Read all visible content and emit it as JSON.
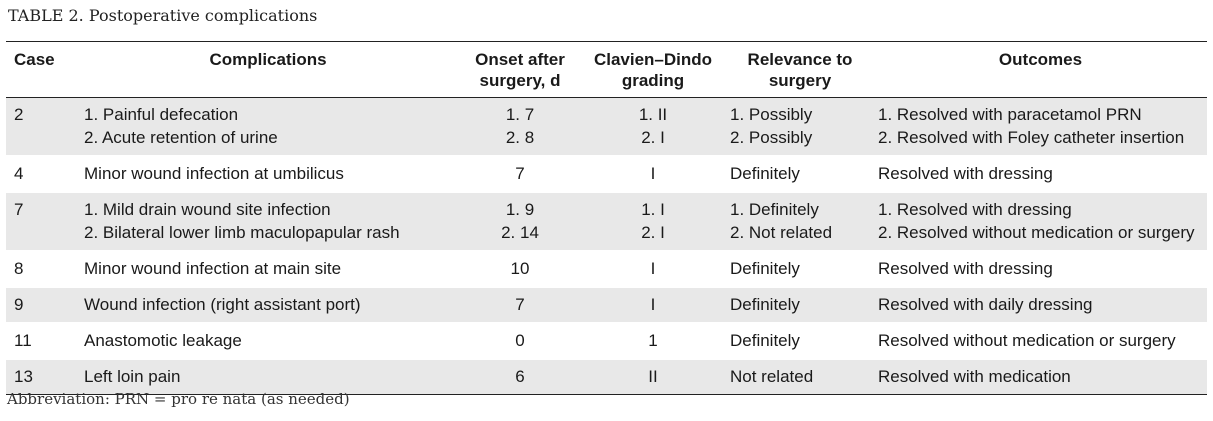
{
  "caption": {
    "label": "TABLE 2.",
    "title": "Postoperative complications"
  },
  "table": {
    "headers": [
      [
        "Case"
      ],
      [
        "Complications"
      ],
      [
        "Onset after",
        "surgery, d"
      ],
      [
        "Clavien–Dindo",
        "grading"
      ],
      [
        "Relevance to",
        "surgery"
      ],
      [
        "Outcomes"
      ]
    ],
    "rows": [
      {
        "case": "2",
        "complications": [
          "1. Painful defecation",
          "2. Acute retention of urine"
        ],
        "onset": [
          "1. 7",
          "2. 8"
        ],
        "grading": [
          "1. II",
          "2. I"
        ],
        "relevance": [
          "1. Possibly",
          "2. Possibly"
        ],
        "outcomes": [
          "1. Resolved with paracetamol PRN",
          "2. Resolved with Foley catheter insertion"
        ]
      },
      {
        "case": "4",
        "complications": [
          "Minor wound infection at umbilicus"
        ],
        "onset": [
          "7"
        ],
        "grading": [
          "I"
        ],
        "relevance": [
          "Definitely"
        ],
        "outcomes": [
          "Resolved with dressing"
        ]
      },
      {
        "case": "7",
        "complications": [
          "1. Mild drain wound site infection",
          "2. Bilateral lower limb maculopapular rash"
        ],
        "onset": [
          "1. 9",
          "2. 14"
        ],
        "grading": [
          "1. I",
          "2. I"
        ],
        "relevance": [
          "1. Definitely",
          "2. Not related"
        ],
        "outcomes": [
          "1. Resolved with dressing",
          "2. Resolved without medication or surgery"
        ]
      },
      {
        "case": "8",
        "complications": [
          "Minor wound infection at main site"
        ],
        "onset": [
          "10"
        ],
        "grading": [
          "I"
        ],
        "relevance": [
          "Definitely"
        ],
        "outcomes": [
          "Resolved with dressing"
        ]
      },
      {
        "case": "9",
        "complications": [
          "Wound infection (right assistant port)"
        ],
        "onset": [
          "7"
        ],
        "grading": [
          "I"
        ],
        "relevance": [
          "Definitely"
        ],
        "outcomes": [
          "Resolved with daily dressing"
        ]
      },
      {
        "case": "11",
        "complications": [
          "Anastomotic leakage"
        ],
        "onset": [
          "0"
        ],
        "grading": [
          "1"
        ],
        "relevance": [
          "Definitely"
        ],
        "outcomes": [
          "Resolved without medication or surgery"
        ]
      },
      {
        "case": "13",
        "complications": [
          "Left loin pain"
        ],
        "onset": [
          "6"
        ],
        "grading": [
          "II"
        ],
        "relevance": [
          "Not related"
        ],
        "outcomes": [
          "Resolved with medication"
        ]
      }
    ]
  },
  "footnote": "Abbreviation: PRN = pro re nata (as needed)"
}
